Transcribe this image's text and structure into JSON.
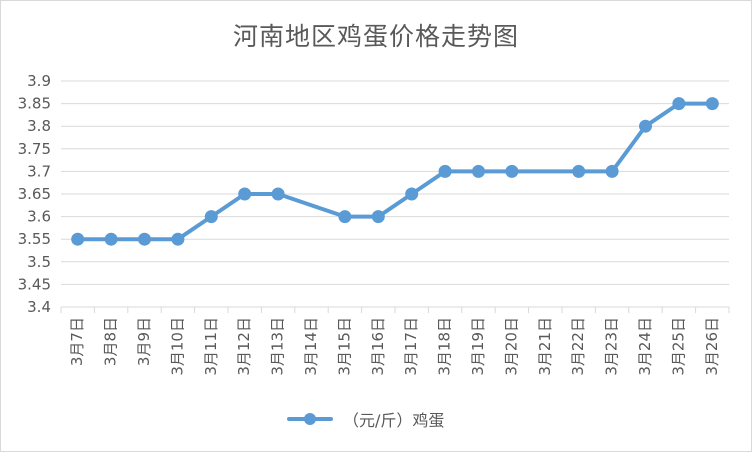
{
  "colors": {
    "series": "#5b9bd5",
    "grid": "#d9d9d9",
    "text": "#595959"
  },
  "chart_data": {
    "type": "line",
    "title": "河南地区鸡蛋价格走势图",
    "xlabel": "",
    "ylabel": "",
    "categories": [
      "3月7日",
      "3月8日",
      "3月9日",
      "3月10日",
      "3月11日",
      "3月12日",
      "3月13日",
      "3月14日",
      "3月15日",
      "3月16日",
      "3月17日",
      "3月18日",
      "3月19日",
      "3月20日",
      "3月21日",
      "3月22日",
      "3月23日",
      "3月24日",
      "3月25日",
      "3月26日"
    ],
    "y_ticks": [
      "3.4",
      "3.45",
      "3.5",
      "3.55",
      "3.6",
      "3.65",
      "3.7",
      "3.75",
      "3.8",
      "3.85",
      "3.9"
    ],
    "ylim": [
      3.4,
      3.9
    ],
    "grid": true,
    "legend_position": "bottom",
    "series": [
      {
        "name": "（元/斤）鸡蛋",
        "values": [
          3.55,
          3.55,
          3.55,
          3.55,
          3.6,
          3.65,
          3.65,
          null,
          3.6,
          3.6,
          3.65,
          3.7,
          3.7,
          3.7,
          null,
          3.7,
          3.7,
          3.8,
          3.85,
          3.85
        ]
      }
    ]
  }
}
